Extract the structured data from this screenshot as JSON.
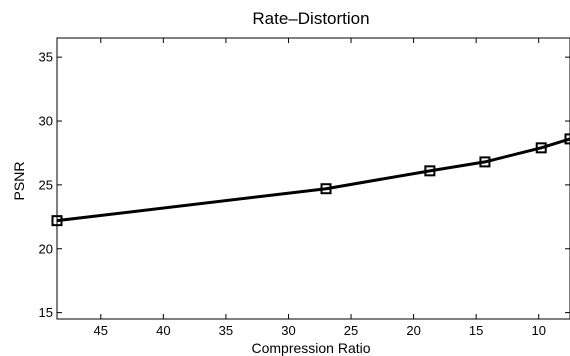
{
  "chart_data": {
    "type": "line",
    "title": "Rate–Distortion",
    "xlabel": "Compression Ratio",
    "ylabel": "PSNR",
    "x_reversed": true,
    "xlim": [
      48.5,
      7.5
    ],
    "ylim": [
      14.5,
      36.5
    ],
    "x_ticks": [
      45,
      40,
      35,
      30,
      25,
      20,
      15,
      10
    ],
    "y_ticks": [
      15,
      20,
      25,
      30,
      35
    ],
    "grid": false,
    "legend": "none",
    "series": [
      {
        "marker": "square",
        "color": "#000000",
        "points": [
          {
            "x": 48.5,
            "y": 22.2
          },
          {
            "x": 27,
            "y": 24.7
          },
          {
            "x": 18.7,
            "y": 26.1
          },
          {
            "x": 14.3,
            "y": 26.8
          },
          {
            "x": 9.8,
            "y": 27.9
          },
          {
            "x": 7.5,
            "y": 28.6
          }
        ]
      }
    ]
  }
}
